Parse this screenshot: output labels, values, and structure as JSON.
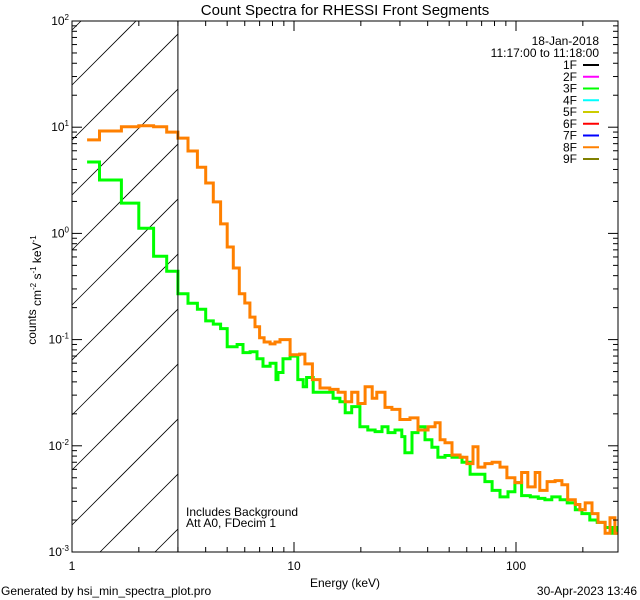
{
  "chart_data": {
    "type": "line",
    "title": "Count Spectra for RHESSI Front Segments",
    "xlabel": "Energy (keV)",
    "ylabel": "counts cm^-2 s^-1 keV^-1",
    "xscale": "log",
    "yscale": "log",
    "xlim": [
      1,
      288
    ],
    "ylim": [
      0.001,
      100
    ],
    "grid": false,
    "xticks": [
      {
        "value": 1,
        "label": "1"
      },
      {
        "value": 10,
        "label": "10"
      },
      {
        "value": 100,
        "label": "100"
      }
    ],
    "yticks": [
      {
        "value": 0.001,
        "base": "10",
        "exp": "-3"
      },
      {
        "value": 0.01,
        "base": "10",
        "exp": "-2"
      },
      {
        "value": 0.1,
        "base": "10",
        "exp": "-1"
      },
      {
        "value": 1,
        "base": "10",
        "exp": "0"
      },
      {
        "value": 10,
        "base": "10",
        "exp": "1"
      },
      {
        "value": 100,
        "base": "10",
        "exp": "2"
      }
    ],
    "shaded_region": {
      "xmin": 1,
      "xmax": 3,
      "pattern": "hatched"
    },
    "boundary_energy": 3,
    "annotations": [
      "Includes Background",
      "Att A0, FDecim 1"
    ],
    "legend": {
      "placement": "top-right",
      "date": "18-Jan-2018",
      "time_range": "11:17:00 to 11:18:00",
      "entries": [
        {
          "label": "1F",
          "color": "#000000"
        },
        {
          "label": "2F",
          "color": "#ff00ff"
        },
        {
          "label": "3F",
          "color": "#00ff00"
        },
        {
          "label": "4F",
          "color": "#00ffff"
        },
        {
          "label": "5F",
          "color": "#cccc00"
        },
        {
          "label": "6F",
          "color": "#ff0000"
        },
        {
          "label": "7F",
          "color": "#0000ff"
        },
        {
          "label": "8F",
          "color": "#ff8000"
        },
        {
          "label": "9F",
          "color": "#808000"
        }
      ]
    },
    "series": [
      {
        "name": "3F",
        "color": "#00ff00",
        "end_energy": 288,
        "energy": [
          1.17,
          1.33,
          1.67,
          2.0,
          2.33,
          2.67,
          3.0,
          3.33,
          3.67,
          4.0,
          4.33,
          4.67,
          5.0,
          5.54,
          5.89,
          6.34,
          6.81,
          7.25,
          7.8,
          8.3,
          8.47,
          8.92,
          9.6,
          10.4,
          11.0,
          11.4,
          12.2,
          15.0,
          16.1,
          17.0,
          18.2,
          19.8,
          21.5,
          23.2,
          24.9,
          26.5,
          28.5,
          30.6,
          31.6,
          34.0,
          36.2,
          38.9,
          41.8,
          44.5,
          47.9,
          51.5,
          57.1,
          62.1,
          67.4,
          72.4,
          78.0,
          84.7,
          92.0,
          98.9,
          106,
          116,
          126,
          135,
          145,
          158,
          170,
          185,
          198,
          215,
          232,
          252,
          271,
          285
        ],
        "values": [
          4.7,
          3.18,
          1.93,
          1.12,
          0.61,
          0.44,
          0.27,
          0.22,
          0.193,
          0.15,
          0.14,
          0.127,
          0.0855,
          0.09,
          0.0755,
          0.077,
          0.066,
          0.056,
          0.06,
          0.042,
          0.049,
          0.066,
          0.07,
          0.042,
          0.036,
          0.044,
          0.032,
          0.028,
          0.026,
          0.0205,
          0.0234,
          0.0151,
          0.0141,
          0.0136,
          0.0151,
          0.0133,
          0.0141,
          0.0122,
          0.0086,
          0.0133,
          0.0151,
          0.0114,
          0.0097,
          0.0078,
          0.0081,
          0.0078,
          0.007,
          0.0054,
          0.0054,
          0.0046,
          0.0038,
          0.0033,
          0.0037,
          0.0045,
          0.0034,
          0.0033,
          0.0032,
          0.0031,
          0.0033,
          0.0031,
          0.0029,
          0.0025,
          0.0023,
          0.002,
          0.0019,
          0.0017,
          0.0015,
          0.0017
        ]
      },
      {
        "name": "8F",
        "color": "#ff8000",
        "end_energy": 288,
        "energy": [
          1.17,
          1.33,
          1.67,
          2.0,
          2.33,
          2.67,
          3.0,
          3.33,
          3.67,
          4.0,
          4.33,
          4.67,
          5.0,
          5.33,
          5.67,
          6.0,
          6.33,
          6.67,
          7.0,
          7.33,
          7.8,
          8.21,
          8.65,
          9.6,
          10.6,
          11.2,
          12.1,
          13.1,
          14.5,
          15.8,
          17.0,
          18.2,
          19.4,
          20.9,
          22.5,
          23.6,
          25.7,
          27.6,
          30.0,
          33.3,
          36.2,
          40.2,
          43.2,
          45.5,
          47.9,
          51.5,
          56.0,
          60.1,
          64.0,
          67.4,
          72.4,
          78.0,
          84.7,
          91.0,
          98.9,
          106,
          113,
          122,
          128,
          138,
          150,
          161,
          171,
          185,
          194,
          205,
          220,
          234,
          252,
          265,
          279
        ],
        "values": [
          7.6,
          9.2,
          10.1,
          10.3,
          10.1,
          9.0,
          7.9,
          5.97,
          4.2,
          2.98,
          1.98,
          1.23,
          0.745,
          0.472,
          0.27,
          0.221,
          0.163,
          0.132,
          0.104,
          0.095,
          0.091,
          0.095,
          0.1,
          0.072,
          0.073,
          0.059,
          0.042,
          0.035,
          0.034,
          0.032,
          0.026,
          0.032,
          0.025,
          0.036,
          0.028,
          0.032,
          0.023,
          0.022,
          0.0177,
          0.0183,
          0.0141,
          0.0151,
          0.0165,
          0.0114,
          0.0107,
          0.0082,
          0.0078,
          0.0068,
          0.0098,
          0.0063,
          0.0068,
          0.007,
          0.0063,
          0.005,
          0.0045,
          0.0056,
          0.0041,
          0.0056,
          0.0038,
          0.0046,
          0.0047,
          0.0043,
          0.0031,
          0.0028,
          0.0025,
          0.0029,
          0.0023,
          0.0019,
          0.0015,
          0.0021,
          0.0015
        ]
      }
    ]
  },
  "footer": {
    "generated_by": "Generated by hsi_min_spectra_plot.pro",
    "timestamp": "30-Apr-2023 13:46"
  }
}
